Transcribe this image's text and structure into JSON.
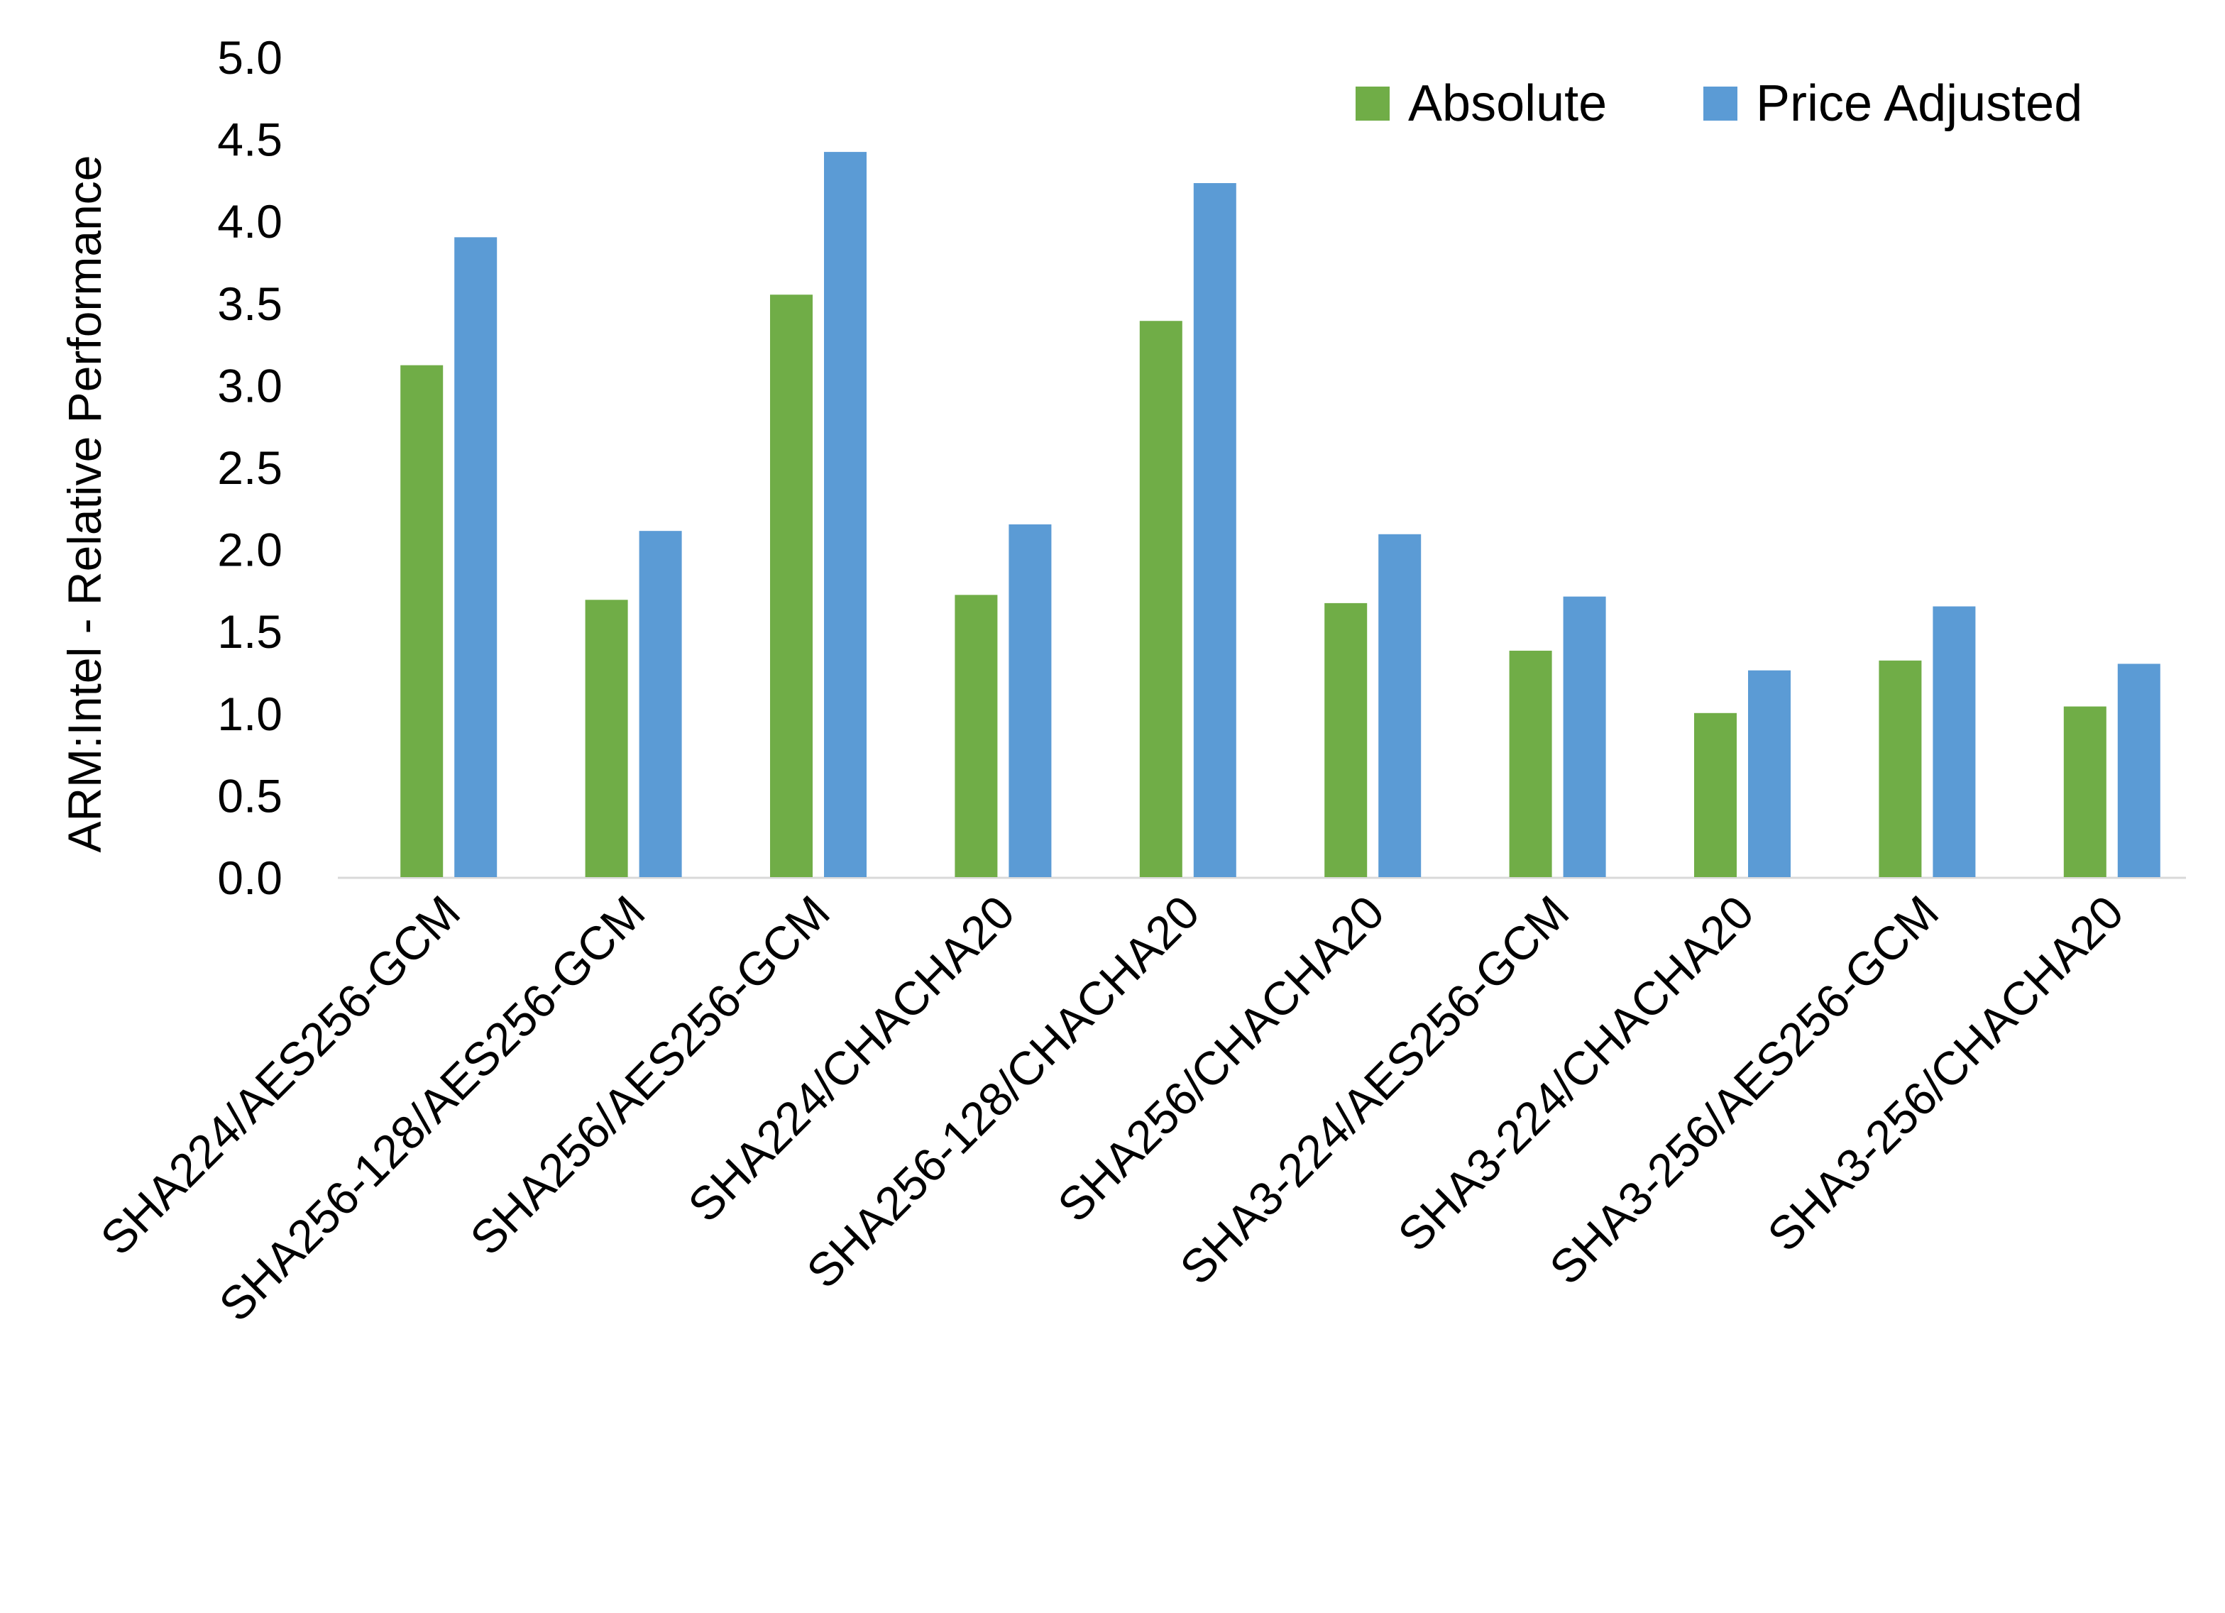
{
  "chart_data": {
    "type": "bar",
    "title": "",
    "xlabel": "",
    "ylabel": "ARM:Intel - Relative Performance",
    "ylim": [
      0,
      5.0
    ],
    "yticks": [
      "0.0",
      "0.5",
      "1.0",
      "1.5",
      "2.0",
      "2.5",
      "3.0",
      "3.5",
      "4.0",
      "4.5",
      "5.0"
    ],
    "grid": false,
    "legend_position": "top-right",
    "categories": [
      "SHA224/AES256-GCM",
      "SHA256-128/AES256-GCM",
      "SHA256/AES256-GCM",
      "SHA224/CHACHA20",
      "SHA256-128/CHACHA20",
      "SHA256/CHACHA20",
      "SHA3-224/AES256-GCM",
      "SHA3-224/CHACHA20",
      "SHA3-256/AES256-GCM",
      "SHA3-256/CHACHA20"
    ],
    "series": [
      {
        "name": "Absolute",
        "color": "#70AD47",
        "values": [
          3.12,
          1.69,
          3.55,
          1.72,
          3.39,
          1.67,
          1.38,
          1.0,
          1.32,
          1.04
        ]
      },
      {
        "name": "Price Adjusted",
        "color": "#5B9BD5",
        "values": [
          3.9,
          2.11,
          4.42,
          2.15,
          4.23,
          2.09,
          1.71,
          1.26,
          1.65,
          1.3
        ]
      }
    ]
  }
}
